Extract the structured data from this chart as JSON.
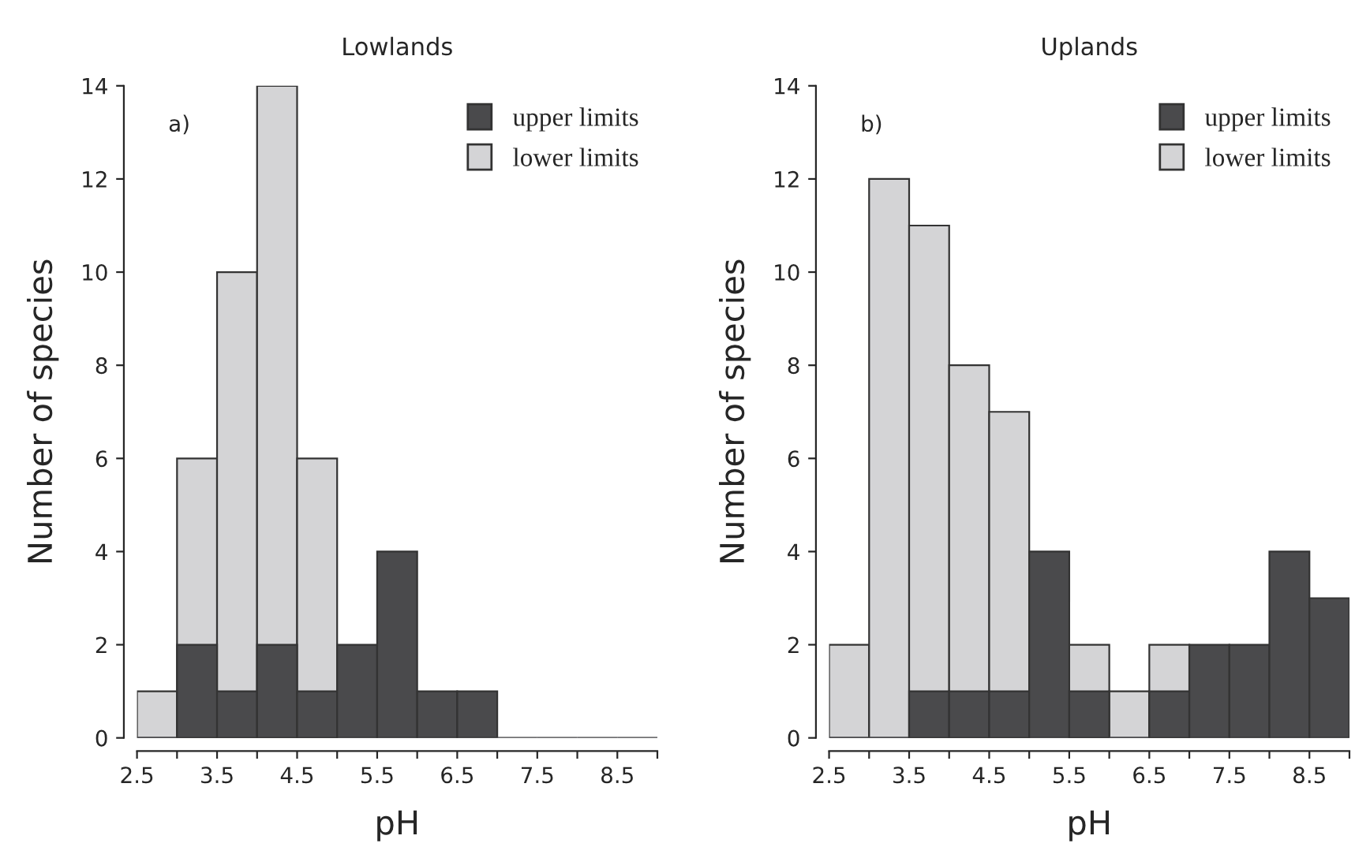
{
  "chart_data": [
    {
      "type": "histogram",
      "title": "Lowlands",
      "xlabel": "pH",
      "ylabel": "Number of species",
      "annotations": [
        "a)"
      ],
      "bins": [
        2.5,
        3,
        3.5,
        4,
        4.5,
        5,
        5.5,
        6,
        6.5,
        7,
        7.5,
        8,
        8.5,
        9
      ],
      "series": [
        {
          "name": "lower limits",
          "color": "#d4d4d6",
          "values": [
            1,
            6,
            10,
            14,
            6,
            null,
            null,
            null,
            null,
            0,
            0,
            0,
            0
          ]
        },
        {
          "name": "upper limits",
          "color": "#4a4a4c",
          "values": [
            0,
            2,
            1,
            2,
            1,
            2,
            4,
            1,
            1,
            0,
            0,
            0,
            0
          ]
        }
      ],
      "xlim": [
        2.5,
        9
      ],
      "xticks": [
        2.5,
        {
          "value": 3,
          "label": null
        },
        3.5,
        {
          "value": 4,
          "label": null
        },
        4.5,
        {
          "value": 5,
          "label": null
        },
        5.5,
        {
          "value": 6,
          "label": null
        },
        6.5,
        {
          "value": 7,
          "label": null
        },
        7.5,
        {
          "value": 8,
          "label": null
        },
        8.5,
        {
          "value": 9,
          "label": null
        }
      ],
      "ylim": [
        0,
        14
      ],
      "yticks": [
        0,
        2,
        4,
        6,
        8,
        10,
        12,
        14
      ],
      "grid": false,
      "legend": "top right"
    },
    {
      "type": "histogram",
      "title": "Uplands",
      "xlabel": "pH",
      "ylabel": "Number of species",
      "annotations": [
        "b)"
      ],
      "bins": [
        2.5,
        3,
        3.5,
        4,
        4.5,
        5,
        5.5,
        6,
        6.5,
        7,
        7.5,
        8,
        8.5,
        9
      ],
      "series": [
        {
          "name": "lower limits",
          "color": "#d4d4d6",
          "values": [
            2,
            12,
            11,
            8,
            7,
            null,
            2,
            1,
            2,
            null,
            null,
            null,
            null
          ]
        },
        {
          "name": "upper limits",
          "color": "#4a4a4c",
          "values": [
            0,
            0,
            1,
            1,
            1,
            4,
            1,
            0,
            1,
            2,
            2,
            4,
            3
          ]
        }
      ],
      "xlim": [
        2.5,
        9
      ],
      "xticks": [
        2.5,
        {
          "value": 3,
          "label": null
        },
        3.5,
        {
          "value": 4,
          "label": null
        },
        4.5,
        {
          "value": 5,
          "label": null
        },
        5.5,
        {
          "value": 6,
          "label": null
        },
        6.5,
        {
          "value": 7,
          "label": null
        },
        7.5,
        {
          "value": 8,
          "label": null
        },
        8.5,
        {
          "value": 9,
          "label": null
        }
      ],
      "ylim": [
        0,
        14
      ],
      "yticks": [
        0,
        2,
        4,
        6,
        8,
        10,
        12,
        14
      ],
      "grid": false,
      "legend": "top right"
    }
  ]
}
